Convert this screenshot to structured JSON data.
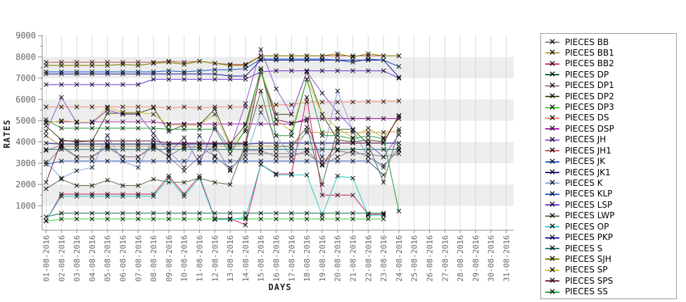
{
  "chart_data": {
    "type": "line",
    "title": "",
    "xlabel": "DAYS",
    "ylabel": "RATES",
    "ylim": [
      0,
      9000
    ],
    "y_ticks": [
      1000,
      2000,
      3000,
      4000,
      5000,
      6000,
      7000,
      8000,
      9000
    ],
    "x_categories": [
      "01-08-2016",
      "02-08-2016",
      "03-08-2016",
      "04-08-2016",
      "05-08-2016",
      "06-08-2016",
      "07-08-2016",
      "08-08-2016",
      "09-08-2016",
      "10-08-2016",
      "11-08-2016",
      "12-08-2016",
      "13-08-2016",
      "14-08-2016",
      "15-08-2016",
      "16-08-2016",
      "17-08-2016",
      "18-08-2016",
      "19-08-2016",
      "20-08-2016",
      "21-08-2016",
      "22-08-2016",
      "23-08-2016",
      "24-08-2016",
      "25-08-2016",
      "26-08-2016",
      "27-08-2016",
      "28-08-2016",
      "29-08-2016",
      "30-08-2016",
      "31-08-2016"
    ],
    "grid": {
      "vertical_gridlines": true,
      "horizontal_bands": [
        [
          1000,
          2000
        ],
        [
          3000,
          4000
        ],
        [
          5000,
          6000
        ],
        [
          7000,
          8000
        ]
      ],
      "band_color": "#ededed",
      "gridline_color": "#d9d9d9"
    },
    "legend_position": "right",
    "marker": "x",
    "marker_color": "#111111",
    "series": [
      {
        "name": "PIECES BB",
        "color": "#8c8c8c",
        "values": [
          2950,
          3750,
          3300,
          3300,
          3750,
          3300,
          3300,
          3750,
          3350,
          3750,
          3750,
          3350,
          2700,
          3450,
          3450,
          3450,
          3450,
          3450,
          2950,
          3600,
          3450,
          3450,
          3300,
          3450
        ]
      },
      {
        "name": "PIECES BB1",
        "color": "#c2a254",
        "values": [
          4300,
          3800,
          3800,
          3800,
          3800,
          3800,
          3800,
          3800,
          3800,
          3800,
          3800,
          3800,
          3800,
          3800,
          3800,
          3800,
          3800,
          4450,
          4450,
          4450,
          4450,
          4450,
          4450,
          4500
        ]
      },
      {
        "name": "PIECES BB2",
        "color": "#d1336e",
        "values": [
          300,
          1550,
          1550,
          1550,
          1550,
          1550,
          1550,
          1550,
          2400,
          1550,
          2400,
          400,
          400,
          100,
          2950,
          2500,
          2500,
          6100,
          1500,
          1500,
          1500,
          600,
          600,
          null
        ]
      },
      {
        "name": "PIECES DP",
        "color": "#0f6b35",
        "values": [
          480,
          650,
          650,
          650,
          650,
          650,
          650,
          650,
          650,
          650,
          650,
          650,
          650,
          650,
          650,
          650,
          650,
          650,
          650,
          650,
          650,
          650,
          650,
          null
        ]
      },
      {
        "name": "PIECES DP1",
        "color": "#a87f9e",
        "values": [
          3600,
          3850,
          3300,
          3300,
          3850,
          3300,
          3300,
          3850,
          3300,
          2650,
          3300,
          3850,
          2650,
          3600,
          3600,
          3300,
          3300,
          3600,
          2900,
          3300,
          3600,
          3300,
          2900,
          3600
        ]
      },
      {
        "name": "PIECES DP2",
        "color": "#4f5b20",
        "values": [
          4750,
          4100,
          4000,
          4050,
          5350,
          5350,
          5350,
          5600,
          4500,
          4800,
          4800,
          5550,
          3900,
          4800,
          7350,
          5300,
          5300,
          7300,
          5300,
          4100,
          4000,
          4100,
          4000,
          5200
        ]
      },
      {
        "name": "PIECES DP3",
        "color": "#45d636",
        "values": [
          280,
          380,
          380,
          380,
          380,
          380,
          380,
          380,
          380,
          380,
          380,
          380,
          380,
          380,
          380,
          380,
          380,
          380,
          380,
          380,
          380,
          380,
          380,
          null
        ]
      },
      {
        "name": "PIECES DS",
        "color": "#f98b6e",
        "values": [
          5650,
          5650,
          5650,
          5650,
          5650,
          5650,
          5650,
          5650,
          5600,
          5650,
          5600,
          5650,
          5650,
          5650,
          5650,
          5750,
          5750,
          5880,
          5880,
          5880,
          5880,
          5900,
          5900,
          5930
        ]
      },
      {
        "name": "PIECES DSP",
        "color": "#b321b3",
        "values": [
          4950,
          4950,
          4950,
          4950,
          4950,
          4950,
          4950,
          4950,
          4850,
          4850,
          4850,
          4850,
          4850,
          4850,
          4850,
          4850,
          4850,
          5100,
          5100,
          5100,
          5100,
          5100,
          5100,
          5100
        ]
      },
      {
        "name": "PIECES JH",
        "color": "#9a5fd0",
        "values": [
          4500,
          6100,
          4900,
          4900,
          5500,
          5300,
          5300,
          4400,
          3500,
          4200,
          3000,
          4700,
          3700,
          5800,
          8350,
          6500,
          5300,
          7300,
          6300,
          5400,
          4600,
          3900,
          3300,
          4350
        ]
      },
      {
        "name": "PIECES JH1",
        "color": "#cd5c5c",
        "values": [
          7750,
          7750,
          7750,
          7750,
          7750,
          7750,
          7750,
          7750,
          7800,
          7750,
          7800,
          7700,
          7650,
          7650,
          8050,
          8050,
          8050,
          8050,
          8050,
          8050,
          8050,
          8050,
          8050,
          8050
        ]
      },
      {
        "name": "PIECES JK",
        "color": "#2062c8",
        "values": [
          7300,
          7300,
          7300,
          7300,
          7300,
          7300,
          7300,
          7300,
          7350,
          7300,
          7350,
          7400,
          7400,
          7450,
          7900,
          7900,
          7900,
          7900,
          7900,
          7850,
          7750,
          7900,
          7850,
          7550
        ]
      },
      {
        "name": "PIECES JK1",
        "color": "#23238b",
        "values": [
          3950,
          3900,
          3900,
          3900,
          3900,
          3900,
          3900,
          3900,
          3900,
          3900,
          3900,
          3900,
          3900,
          3900,
          3950,
          3950,
          3950,
          3950,
          3950,
          3950,
          3950,
          3950,
          3950,
          3950
        ]
      },
      {
        "name": "PIECES K",
        "color": "#8fa8dc",
        "values": [
          3060,
          2300,
          2650,
          2800,
          4300,
          3100,
          2800,
          4200,
          3600,
          2800,
          4300,
          3300,
          2800,
          3300,
          5400,
          4300,
          3300,
          4550,
          3300,
          6400,
          4550,
          3300,
          2800,
          3780
        ]
      },
      {
        "name": "PIECES KLP",
        "color": "#2e5fcc",
        "values": [
          2950,
          3100,
          3100,
          3100,
          3100,
          3100,
          3100,
          3100,
          3100,
          3100,
          3100,
          3100,
          3100,
          3100,
          3100,
          3100,
          3100,
          3100,
          3100,
          3100,
          3100,
          3100,
          2450,
          null
        ]
      },
      {
        "name": "PIECES LSP",
        "color": "#7340d9",
        "values": [
          6700,
          6700,
          6700,
          6700,
          6700,
          6700,
          6700,
          6950,
          6950,
          6950,
          6950,
          6950,
          6950,
          6950,
          7300,
          7350,
          7350,
          7350,
          7350,
          7350,
          7350,
          7350,
          7350,
          7000
        ]
      },
      {
        "name": "PIECES LWP",
        "color": "#5e7a52",
        "values": [
          1800,
          2250,
          1950,
          1950,
          2200,
          1950,
          1950,
          2250,
          2100,
          2100,
          2300,
          2100,
          2000,
          3900,
          6400,
          3800,
          3800,
          4700,
          2000,
          4600,
          4600,
          3900,
          2100,
          4600
        ]
      },
      {
        "name": "PIECES OP",
        "color": "#35cfc7",
        "values": [
          300,
          1450,
          1450,
          1450,
          1450,
          1450,
          1450,
          1450,
          2300,
          1450,
          2300,
          350,
          350,
          450,
          2950,
          2450,
          2450,
          2450,
          550,
          2400,
          2300,
          550,
          550,
          null
        ]
      },
      {
        "name": "PIECES PKP",
        "color": "#2b27ae",
        "values": [
          7200,
          7200,
          7200,
          7200,
          7200,
          7200,
          7200,
          7200,
          7200,
          7200,
          7200,
          7200,
          7100,
          7100,
          7850,
          7850,
          7850,
          7850,
          7850,
          7850,
          7850,
          7850,
          7850,
          7050
        ]
      },
      {
        "name": "PIECES S",
        "color": "#2f7e79",
        "values": [
          3650,
          3650,
          3650,
          3650,
          3650,
          3650,
          3650,
          3650,
          3650,
          3650,
          3650,
          3650,
          3650,
          3650,
          3650,
          3650,
          3650,
          3650,
          3650,
          3650,
          3650,
          3650,
          3650,
          3650
        ]
      },
      {
        "name": "PIECES SJH",
        "color": "#828000",
        "values": [
          7600,
          7600,
          7600,
          7600,
          7600,
          7650,
          7600,
          7700,
          7750,
          7650,
          7800,
          7700,
          7600,
          7600,
          8050,
          8050,
          8050,
          8050,
          8050,
          8150,
          8000,
          8150,
          8050,
          8050
        ]
      },
      {
        "name": "PIECES SP",
        "color": "#cfc44f",
        "values": [
          4900,
          5000,
          4950,
          4950,
          5600,
          5400,
          5400,
          5300,
          4800,
          4800,
          4800,
          5300,
          3800,
          4500,
          7450,
          5050,
          4500,
          6950,
          5300,
          4650,
          4200,
          4650,
          4200,
          5100
        ]
      },
      {
        "name": "PIECES SPS",
        "color": "#7e2b52",
        "values": [
          2100,
          4050,
          4050,
          4050,
          4050,
          4050,
          4050,
          4050,
          3950,
          3950,
          3950,
          3950,
          3950,
          3950,
          7300,
          5050,
          4900,
          5000,
          2900,
          3950,
          3950,
          3950,
          3950,
          5250
        ]
      },
      {
        "name": "PIECES SS",
        "color": "#2fa347",
        "values": [
          5050,
          4650,
          4650,
          4650,
          4650,
          4650,
          4650,
          4650,
          4600,
          4600,
          4600,
          4600,
          3450,
          4600,
          7450,
          4300,
          4300,
          6950,
          4300,
          4300,
          4150,
          4300,
          4150,
          750
        ]
      }
    ]
  }
}
